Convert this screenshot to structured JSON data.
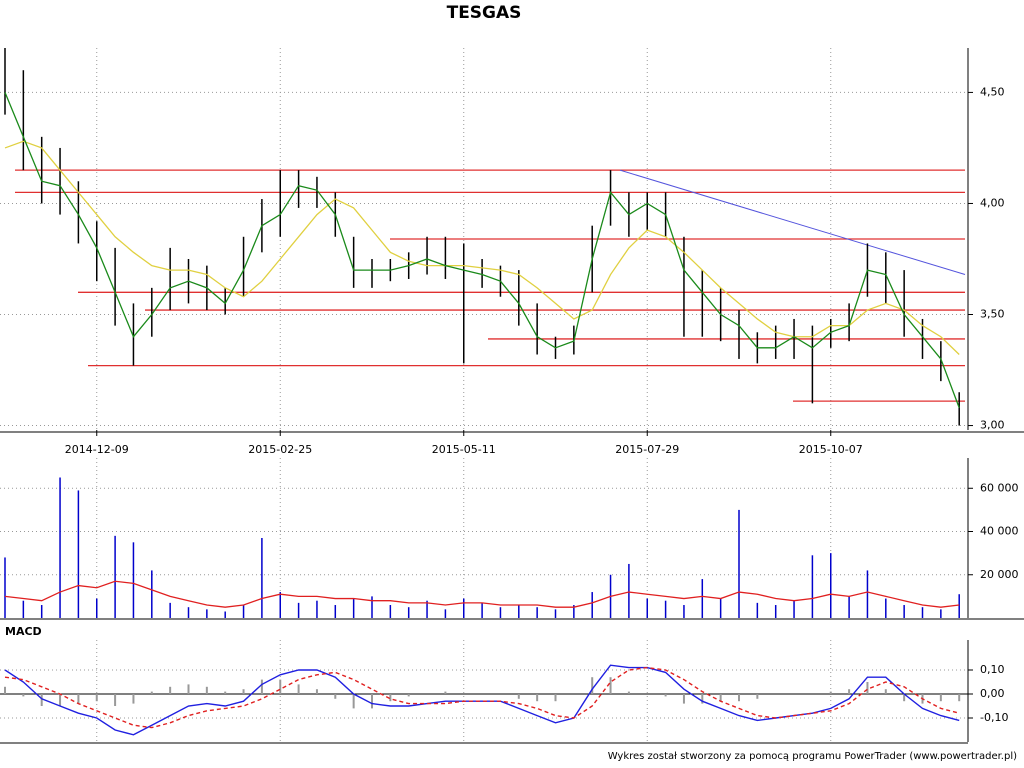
{
  "chart_data": [
    {
      "type": "range",
      "title": "TESGAS",
      "categories": [
        null,
        null,
        null,
        null,
        null,
        "2014-12-09",
        null,
        null,
        null,
        null,
        null,
        null,
        null,
        null,
        null,
        "2015-02-25",
        null,
        null,
        null,
        null,
        null,
        null,
        null,
        null,
        null,
        "2015-05-11",
        null,
        null,
        null,
        null,
        null,
        null,
        null,
        null,
        null,
        "2015-07-29",
        null,
        null,
        null,
        null,
        null,
        null,
        null,
        null,
        null,
        "2015-10-07",
        null,
        null,
        null,
        null,
        null,
        null,
        null
      ],
      "high": [
        4.7,
        4.6,
        4.3,
        4.25,
        4.1,
        3.92,
        3.8,
        3.55,
        3.62,
        3.8,
        3.75,
        3.72,
        3.62,
        3.85,
        4.02,
        4.15,
        4.15,
        4.12,
        4.05,
        3.85,
        3.75,
        3.75,
        3.78,
        3.85,
        3.85,
        3.82,
        3.75,
        3.72,
        3.7,
        3.55,
        3.4,
        3.45,
        3.9,
        4.15,
        4.05,
        4.05,
        4.05,
        3.85,
        3.7,
        3.62,
        3.52,
        3.42,
        3.45,
        3.48,
        3.45,
        3.48,
        3.55,
        3.82,
        3.78,
        3.7,
        3.48,
        3.38,
        3.15
      ],
      "low": [
        4.4,
        4.15,
        4.0,
        3.95,
        3.82,
        3.65,
        3.45,
        3.27,
        3.4,
        3.52,
        3.55,
        3.52,
        3.5,
        3.58,
        3.78,
        3.85,
        3.98,
        3.98,
        3.85,
        3.62,
        3.62,
        3.65,
        3.66,
        3.68,
        3.66,
        3.28,
        3.62,
        3.58,
        3.45,
        3.32,
        3.3,
        3.32,
        3.6,
        3.9,
        3.85,
        3.88,
        3.85,
        3.4,
        3.4,
        3.38,
        3.3,
        3.28,
        3.3,
        3.3,
        3.1,
        3.35,
        3.38,
        3.58,
        3.55,
        3.4,
        3.3,
        3.2,
        3.0
      ],
      "series": [
        {
          "color": "#1a8a1a",
          "values": [
            4.5,
            4.3,
            4.1,
            4.08,
            3.95,
            3.8,
            3.6,
            3.4,
            3.5,
            3.62,
            3.65,
            3.62,
            3.55,
            3.7,
            3.9,
            3.95,
            4.08,
            4.06,
            3.95,
            3.7,
            3.7,
            3.7,
            3.72,
            3.75,
            3.72,
            3.7,
            3.68,
            3.65,
            3.55,
            3.4,
            3.35,
            3.38,
            3.75,
            4.05,
            3.95,
            4.0,
            3.95,
            3.7,
            3.6,
            3.5,
            3.45,
            3.35,
            3.35,
            3.4,
            3.35,
            3.42,
            3.45,
            3.7,
            3.68,
            3.5,
            3.4,
            3.3,
            3.08
          ]
        },
        {
          "color": "#e0d040",
          "values": [
            4.25,
            4.28,
            4.25,
            4.15,
            4.05,
            3.95,
            3.85,
            3.78,
            3.72,
            3.7,
            3.7,
            3.68,
            3.62,
            3.58,
            3.65,
            3.75,
            3.85,
            3.95,
            4.02,
            3.98,
            3.88,
            3.78,
            3.74,
            3.72,
            3.72,
            3.72,
            3.71,
            3.7,
            3.68,
            3.62,
            3.55,
            3.48,
            3.52,
            3.68,
            3.8,
            3.88,
            3.85,
            3.78,
            3.7,
            3.62,
            3.55,
            3.48,
            3.42,
            3.4,
            3.4,
            3.45,
            3.45,
            3.52,
            3.55,
            3.52,
            3.45,
            3.4,
            3.32
          ]
        }
      ],
      "levels": [
        4.15,
        4.05,
        3.84,
        3.6,
        3.52,
        3.39,
        3.27,
        3.11
      ],
      "levels_color": "#e03030",
      "trend_line": {
        "values": [
          4.15,
          3.68
        ],
        "color": "#5555dd"
      },
      "ylim": [
        2.98,
        4.7
      ],
      "yticks": [
        {
          "value": 3,
          "label": "3,00"
        },
        {
          "value": 3.5,
          "label": "3,50"
        },
        {
          "value": 4,
          "label": "4,00"
        },
        {
          "value": 4.5,
          "label": "4,50"
        }
      ],
      "grid": true
    },
    {
      "type": "bar",
      "color": "#0000cc",
      "values": [
        28000,
        8000,
        6000,
        65000,
        59000,
        9000,
        38000,
        35000,
        22000,
        7000,
        5000,
        4000,
        3000,
        6000,
        37000,
        12000,
        7000,
        8000,
        6000,
        9000,
        10000,
        6000,
        5000,
        8000,
        4000,
        9000,
        7000,
        5000,
        6000,
        5000,
        4000,
        6000,
        12000,
        20000,
        25000,
        9000,
        8000,
        6000,
        18000,
        9000,
        50000,
        7000,
        6000,
        8000,
        29000,
        30000,
        10000,
        22000,
        9000,
        6000,
        5000,
        4000,
        11000
      ],
      "average": {
        "color": "#e02020",
        "values": [
          10000,
          9000,
          8000,
          12000,
          15000,
          14000,
          17000,
          16000,
          13000,
          10000,
          8000,
          6000,
          5000,
          6000,
          9000,
          11000,
          10000,
          10000,
          9000,
          9000,
          8000,
          8000,
          7000,
          7000,
          6000,
          7000,
          7000,
          6000,
          6000,
          6000,
          5000,
          5000,
          7000,
          10000,
          12000,
          11000,
          10000,
          9000,
          10000,
          9000,
          12000,
          11000,
          9000,
          8000,
          9000,
          11000,
          10000,
          12000,
          10000,
          8000,
          6000,
          5000,
          6000
        ]
      },
      "ylim": [
        0,
        74000
      ],
      "yticks": [
        {
          "value": 20000,
          "label": "20 000"
        },
        {
          "value": 40000,
          "label": "40 000"
        },
        {
          "value": 60000,
          "label": "60 000"
        }
      ],
      "grid": true
    },
    {
      "type": "line",
      "title": "MACD",
      "series": [
        {
          "color": "#2020e0",
          "style": "solid",
          "values": [
            0.1,
            0.05,
            -0.02,
            -0.05,
            -0.08,
            -0.1,
            -0.15,
            -0.17,
            -0.13,
            -0.09,
            -0.05,
            -0.04,
            -0.05,
            -0.03,
            0.04,
            0.08,
            0.1,
            0.1,
            0.07,
            0.0,
            -0.04,
            -0.05,
            -0.05,
            -0.04,
            -0.03,
            -0.03,
            -0.03,
            -0.03,
            -0.06,
            -0.09,
            -0.12,
            -0.1,
            0.02,
            0.12,
            0.11,
            0.11,
            0.09,
            0.02,
            -0.03,
            -0.06,
            -0.09,
            -0.11,
            -0.1,
            -0.09,
            -0.08,
            -0.06,
            -0.02,
            0.07,
            0.07,
            0.0,
            -0.06,
            -0.09,
            -0.11
          ]
        },
        {
          "color": "#e02020",
          "style": "dashed",
          "values": [
            0.07,
            0.06,
            0.03,
            0.0,
            -0.04,
            -0.07,
            -0.1,
            -0.13,
            -0.14,
            -0.12,
            -0.09,
            -0.07,
            -0.06,
            -0.05,
            -0.02,
            0.02,
            0.06,
            0.08,
            0.09,
            0.06,
            0.02,
            -0.02,
            -0.04,
            -0.04,
            -0.04,
            -0.03,
            -0.03,
            -0.03,
            -0.04,
            -0.06,
            -0.09,
            -0.1,
            -0.05,
            0.05,
            0.1,
            0.11,
            0.1,
            0.06,
            0.01,
            -0.03,
            -0.06,
            -0.09,
            -0.1,
            -0.09,
            -0.08,
            -0.07,
            -0.04,
            0.02,
            0.05,
            0.03,
            -0.02,
            -0.06,
            -0.08
          ]
        }
      ],
      "histogram": {
        "color": "#999999",
        "values": [
          0.03,
          -0.01,
          -0.05,
          -0.05,
          -0.04,
          -0.03,
          -0.05,
          -0.04,
          0.01,
          0.03,
          0.04,
          0.03,
          0.01,
          0.02,
          0.06,
          0.06,
          0.04,
          0.02,
          -0.02,
          -0.06,
          -0.06,
          -0.03,
          -0.01,
          0.0,
          0.01,
          0,
          0,
          0,
          -0.02,
          -0.03,
          -0.03,
          0.0,
          0.07,
          0.07,
          0.01,
          0.0,
          -0.01,
          -0.04,
          -0.04,
          -0.03,
          -0.03,
          -0.02,
          0.0,
          0.0,
          0.0,
          0.01,
          0.02,
          0.05,
          0.02,
          -0.03,
          -0.04,
          -0.03,
          -0.03
        ]
      },
      "ylim": [
        -0.2,
        0.225
      ],
      "yticks": [
        {
          "value": -0.1,
          "label": "-0,10"
        },
        {
          "value": 0,
          "label": "0,00"
        },
        {
          "value": 0.1,
          "label": "0,10"
        }
      ],
      "grid": true
    }
  ],
  "footer": "Wykres został stworzony za pomocą programu PowerTrader (www.powertrader.pl)"
}
